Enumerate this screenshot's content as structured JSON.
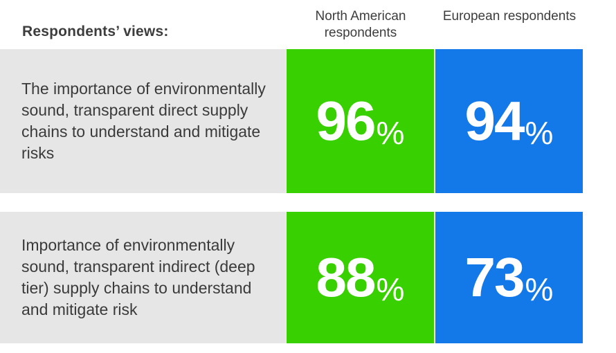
{
  "header": {
    "label": "Respondents’ views:"
  },
  "columns": [
    {
      "label": "North American respondents",
      "color": "#39d000"
    },
    {
      "label": "European respondents",
      "color": "#1479e8"
    }
  ],
  "rows": [
    {
      "label": "The importance of environmentally sound, transparent direct supply chains to understand and mitigate risks",
      "values": [
        "96",
        "94"
      ]
    },
    {
      "label": "Importance of environmentally sound, transparent indirect (deep tier) supply chains to understand and mitigate risk",
      "values": [
        "88",
        "73"
      ]
    }
  ],
  "percent_sign": "%",
  "row_background": "#e6e6e6",
  "chart_data": {
    "type": "table",
    "title": "",
    "categories": [
      "The importance of environmentally sound, transparent direct supply chains to understand and mitigate risks",
      "Importance of environmentally sound, transparent indirect (deep tier) supply chains to understand and mitigate risk"
    ],
    "series": [
      {
        "name": "North American respondents",
        "values": [
          96,
          88
        ],
        "unit": "%"
      },
      {
        "name": "European respondents",
        "values": [
          94,
          73
        ],
        "unit": "%"
      }
    ]
  }
}
